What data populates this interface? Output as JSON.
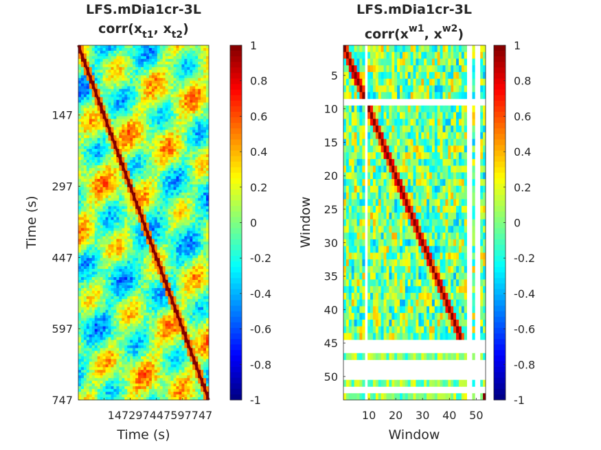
{
  "chart_data": [
    {
      "type": "heatmap",
      "title": "LFS.mDia1cr-3L",
      "subtitle": {
        "prefix": "corr(x",
        "sub1": "t1",
        "mid": ", x",
        "sub2": "t2",
        "suffix": ")"
      },
      "xlabel": "Time (s)",
      "ylabel": "Time (s)",
      "xlim": [
        0,
        747
      ],
      "ylim": [
        0,
        747
      ],
      "y_reversed": true,
      "x_ticks": [
        147,
        297,
        447,
        597,
        747
      ],
      "x_tick_text": "147297447597747",
      "y_ticks": [
        147,
        297,
        447,
        597,
        747
      ],
      "diagonal": {
        "from": [
          0,
          0
        ],
        "to": [
          747,
          747
        ],
        "value": 1.0
      },
      "background_value_range": [
        -0.6,
        0.6
      ],
      "colormap": "jet",
      "colorbar": {
        "ticks": [
          1,
          0.8,
          0.6,
          0.4,
          0.2,
          0,
          -0.2,
          -0.4,
          -0.6,
          -0.8,
          -1
        ],
        "range": [
          -1,
          1
        ]
      }
    },
    {
      "type": "heatmap",
      "title": "LFS.mDia1cr-3L",
      "subtitle": {
        "prefix": "corr(x",
        "sup1": "w1",
        "mid": ", x",
        "sup2": "w2",
        "suffix": ")"
      },
      "xlabel": "Window",
      "ylabel": "Window",
      "xlim": [
        0.5,
        53.5
      ],
      "ylim": [
        0.5,
        53.5
      ],
      "y_reversed": true,
      "x_ticks": [
        10,
        20,
        30,
        40,
        50
      ],
      "y_ticks": [
        5,
        10,
        15,
        20,
        25,
        30,
        35,
        40,
        45,
        50
      ],
      "n_windows": 53,
      "valid_windows_end": 44,
      "diagonal_value": 1.0,
      "missing_windows": [
        9,
        45,
        46,
        48,
        49,
        50,
        52
      ],
      "missing_columns": [
        9,
        47,
        48,
        50,
        51
      ],
      "colormap": "jet",
      "colorbar": {
        "ticks": [
          1,
          0.8,
          0.6,
          0.4,
          0.2,
          0,
          -0.2,
          -0.4,
          -0.6,
          -0.8,
          -1
        ],
        "range": [
          -1,
          1
        ]
      }
    }
  ]
}
